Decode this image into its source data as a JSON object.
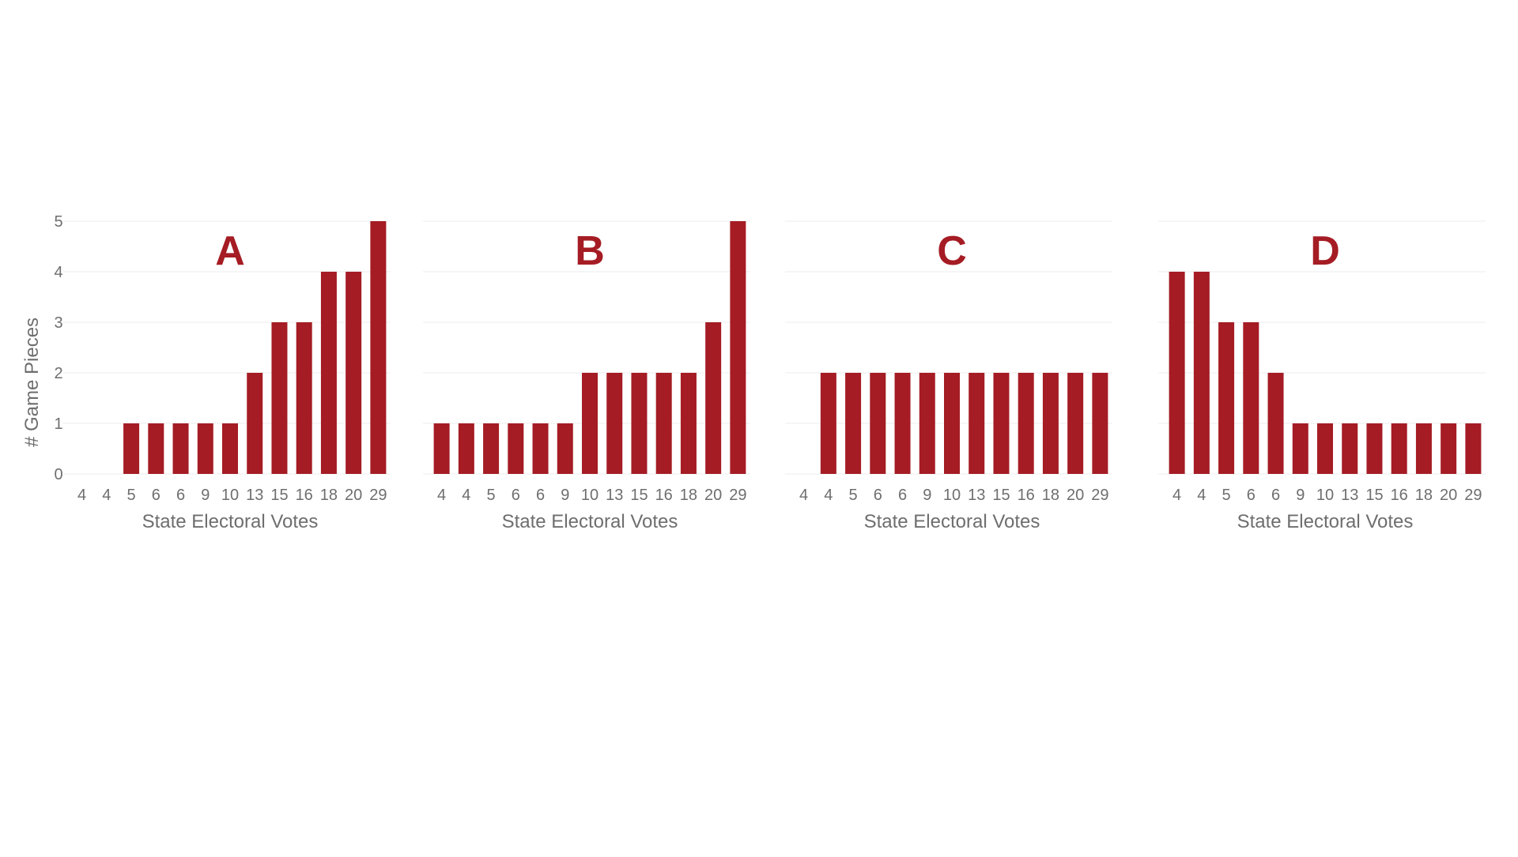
{
  "colors": {
    "bar": "#a51c24",
    "title": "#a51c24",
    "grid": "#ececec",
    "tick_text": "#6e6e6e"
  },
  "y_axis_label": "# Game Pieces",
  "chart_data": [
    {
      "type": "bar",
      "title": "A",
      "xlabel": "State Electoral Votes",
      "ylabel": "# Game Pieces",
      "ylim": [
        0,
        5
      ],
      "yticks": [
        0,
        1,
        2,
        3,
        4,
        5
      ],
      "categories": [
        "4",
        "4",
        "5",
        "6",
        "6",
        "9",
        "10",
        "13",
        "15",
        "16",
        "18",
        "20",
        "29"
      ],
      "values": [
        0,
        0,
        1,
        1,
        1,
        1,
        1,
        2,
        3,
        3,
        4,
        4,
        5
      ],
      "grid": true
    },
    {
      "type": "bar",
      "title": "B",
      "xlabel": "State Electoral Votes",
      "ylabel": "",
      "ylim": [
        0,
        5
      ],
      "categories": [
        "4",
        "4",
        "5",
        "6",
        "6",
        "9",
        "10",
        "13",
        "15",
        "16",
        "18",
        "20",
        "29"
      ],
      "values": [
        1,
        1,
        1,
        1,
        1,
        1,
        2,
        2,
        2,
        2,
        2,
        3,
        5
      ],
      "grid": true
    },
    {
      "type": "bar",
      "title": "C",
      "xlabel": "State Electoral Votes",
      "ylabel": "",
      "ylim": [
        0,
        5
      ],
      "categories": [
        "4",
        "4",
        "5",
        "6",
        "6",
        "9",
        "10",
        "13",
        "15",
        "16",
        "18",
        "20",
        "29"
      ],
      "values": [
        0,
        2,
        2,
        2,
        2,
        2,
        2,
        2,
        2,
        2,
        2,
        2,
        2
      ],
      "grid": true
    },
    {
      "type": "bar",
      "title": "D",
      "xlabel": "State Electoral Votes",
      "ylabel": "",
      "ylim": [
        0,
        5
      ],
      "categories": [
        "4",
        "4",
        "5",
        "6",
        "6",
        "9",
        "10",
        "13",
        "15",
        "16",
        "18",
        "20",
        "29"
      ],
      "values": [
        4,
        4,
        3,
        3,
        2,
        1,
        1,
        1,
        1,
        1,
        1,
        1,
        1
      ],
      "grid": true
    }
  ]
}
